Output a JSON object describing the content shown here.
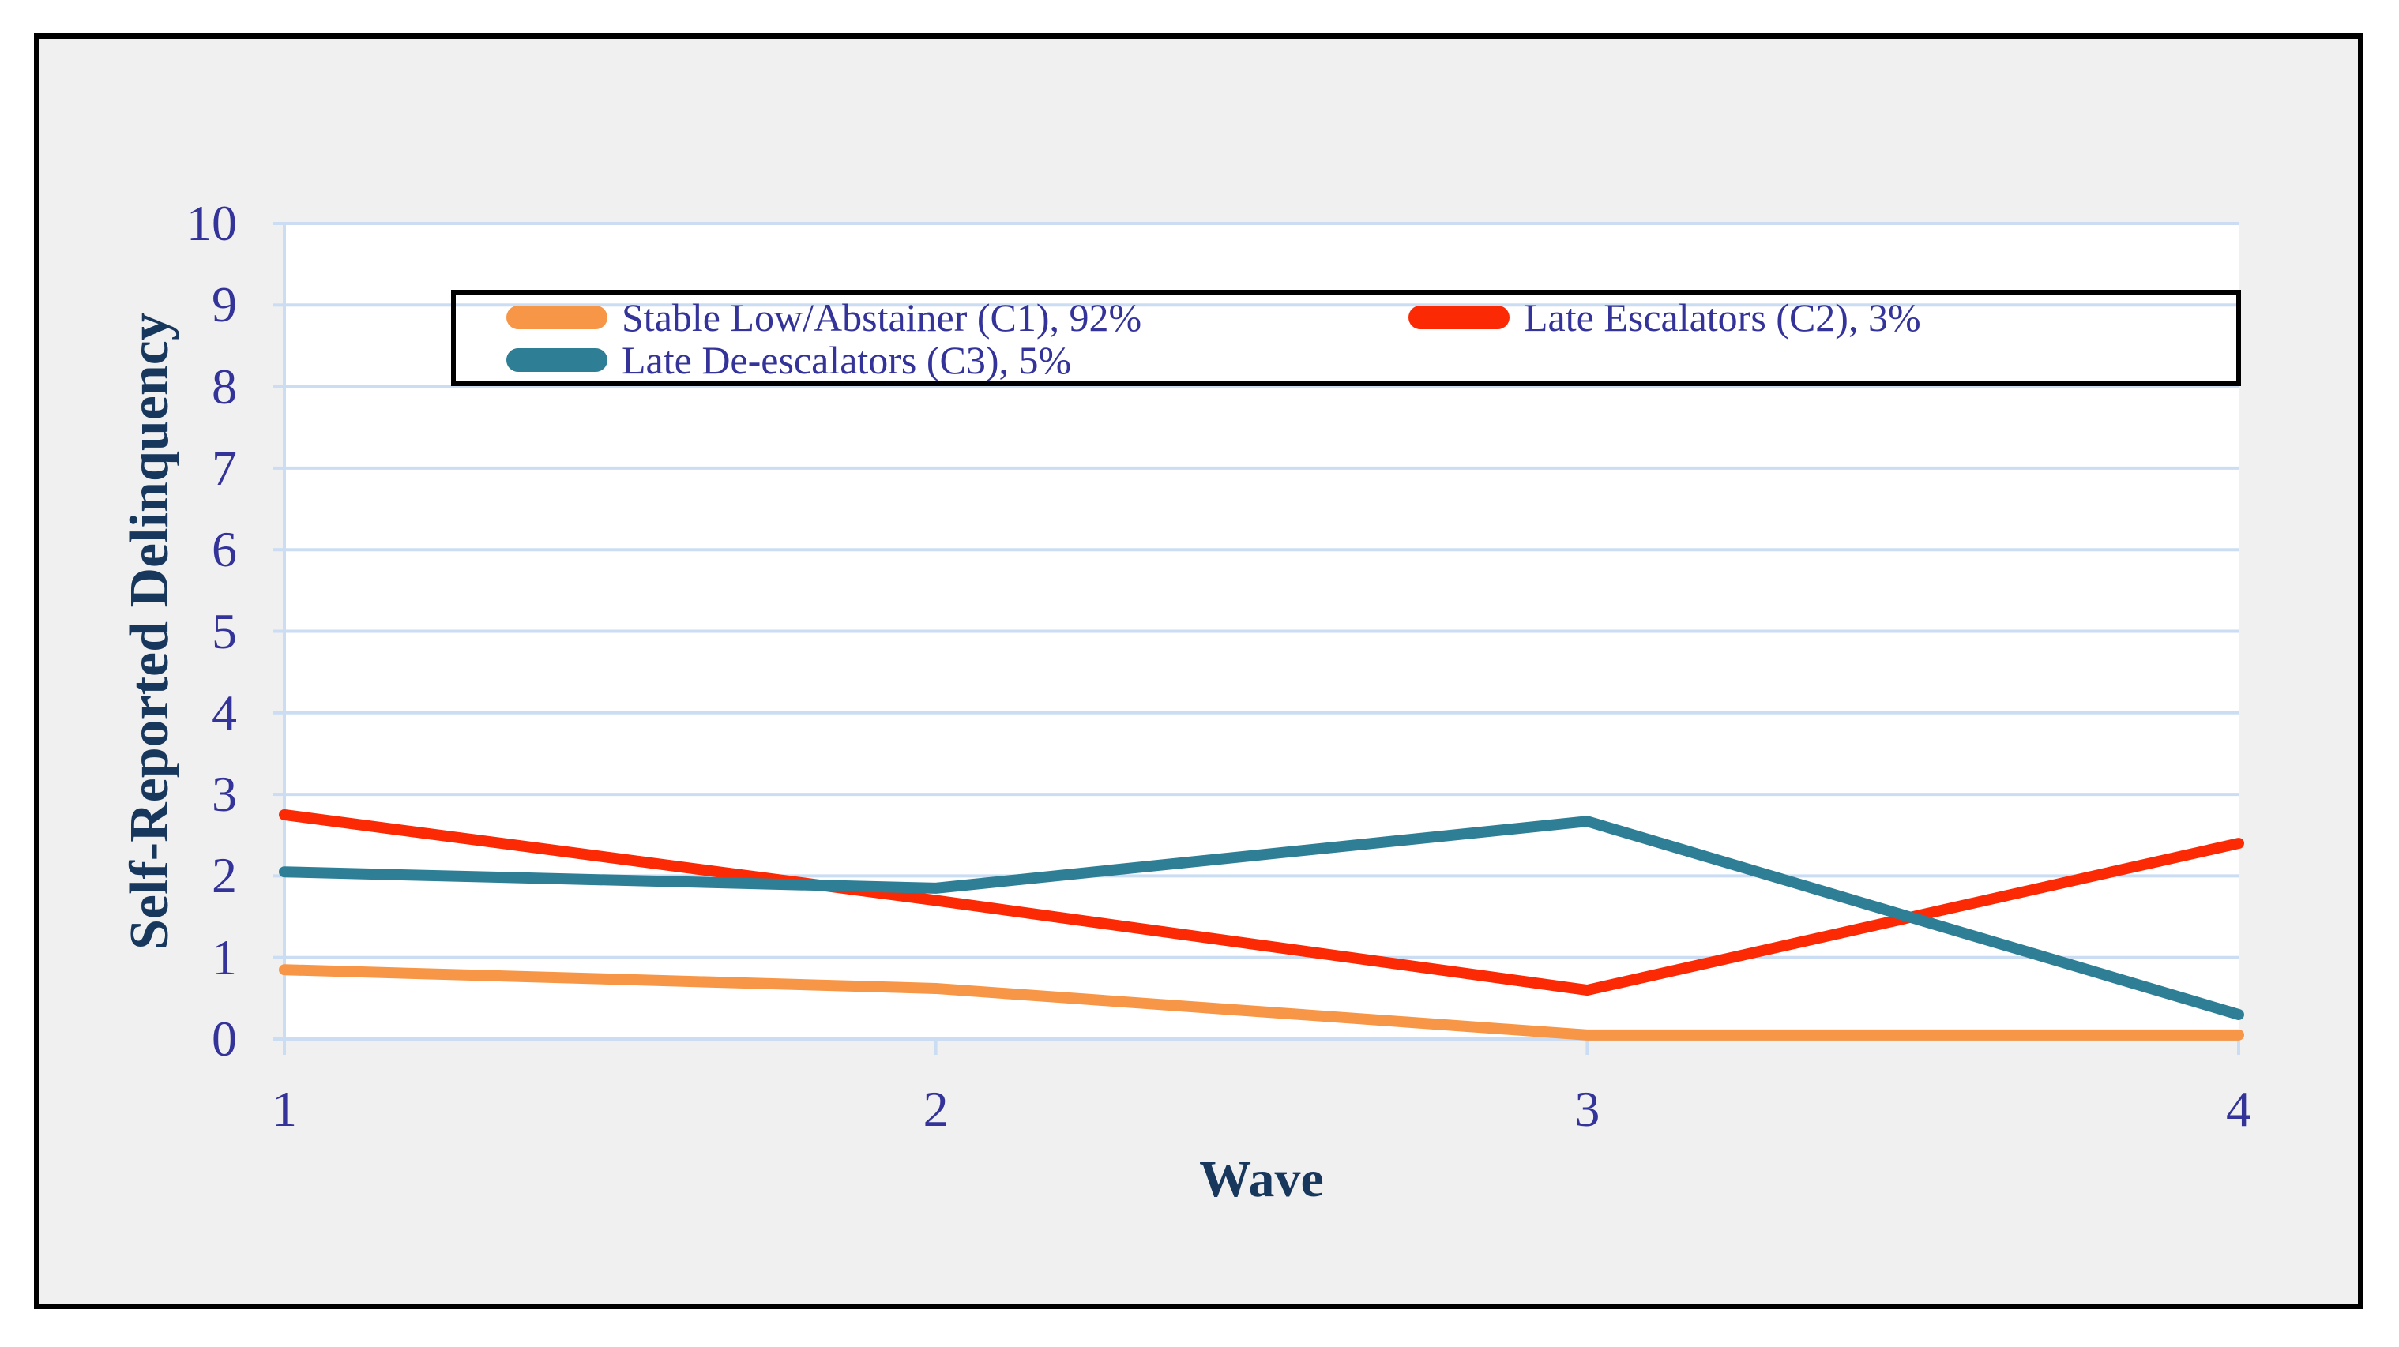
{
  "chart_data": {
    "type": "line",
    "title": "",
    "xlabel": "Wave",
    "ylabel": "Self-Reported Delinquency",
    "x": [
      1,
      2,
      3,
      4
    ],
    "xticklabels": [
      "1",
      "2",
      "3",
      "4"
    ],
    "yticks": [
      0,
      1,
      2,
      3,
      4,
      5,
      6,
      7,
      8,
      9,
      10
    ],
    "ylim": [
      0,
      10
    ],
    "grid": "horizontal gridlines at every integer, light blue",
    "legend_position": "top-inside, two columns, black border, transparent fill",
    "series": [
      {
        "name": "Stable Low/Abstainer (C1), 92%",
        "color": "#F79646",
        "values": [
          0.85,
          0.62,
          0.05,
          0.05
        ]
      },
      {
        "name": "Late Escalators (C2), 3%",
        "color": "#FB2A05",
        "values": [
          2.75,
          1.7,
          0.6,
          2.4
        ]
      },
      {
        "name": "Late De-escalators (C3), 5%",
        "color": "#2E7F96",
        "values": [
          2.05,
          1.85,
          2.67,
          0.3
        ]
      }
    ]
  },
  "colors": {
    "frame_border": "#000000",
    "frame_background": "#F0F0F1",
    "plot_background": "#FFFFFF",
    "gridline": "#CBDDF2",
    "tick_text": "#333399",
    "axis_title_text": "#17375D",
    "legend_border": "#000000"
  }
}
